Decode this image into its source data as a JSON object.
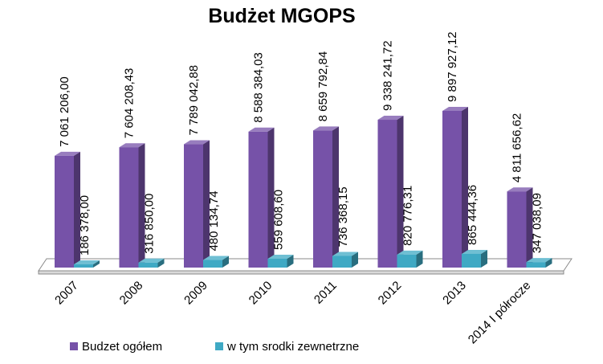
{
  "chart_data": {
    "type": "bar",
    "title": "Budżet MGOPS",
    "categories": [
      "2007",
      "2008",
      "2009",
      "2010",
      "2011",
      "2012",
      "2013",
      "2014 I półrocze"
    ],
    "series": [
      {
        "name": "Budzet ogółem",
        "color": "#7652A8",
        "values": [
          7061206.0,
          7604208.43,
          7789042.88,
          8588384.03,
          8659792.84,
          9338241.72,
          9897927.12,
          4811656.62
        ],
        "labels": [
          "7 061 206,00",
          "7 604 208,43",
          "7 789 042,88",
          "8 588 384,03",
          "8 659 792,84",
          "9 338 241,72",
          "9 897 927,12",
          "4 811 656,62"
        ]
      },
      {
        "name": "w tym srodki zewnetrzne",
        "color": "#3FA9C4",
        "values": [
          186378.0,
          316850.0,
          480134.74,
          559608.6,
          736368.15,
          820776.31,
          865444.36,
          347038.09
        ],
        "labels": [
          "186 378,00",
          "316 850,00",
          "480 134,74",
          "559 608,60",
          "736 368,15",
          "820 776,31",
          "865 444,36",
          "347 038,09"
        ]
      }
    ],
    "xlabel": "",
    "ylabel": "",
    "ylim": [
      0,
      10000000
    ],
    "grid": false,
    "legend": "bottom-left",
    "three_d": true
  }
}
